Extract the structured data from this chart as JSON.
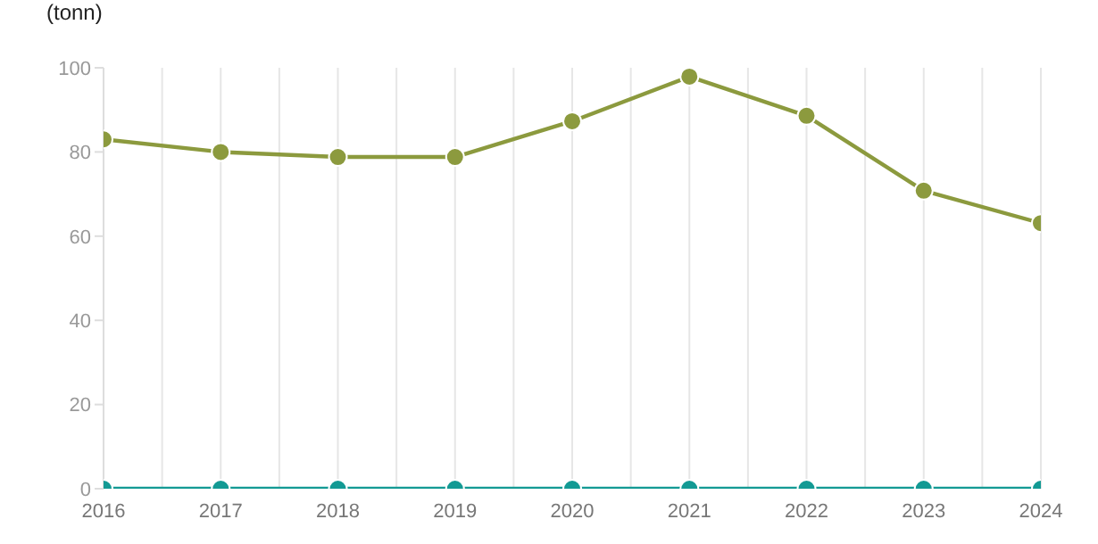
{
  "chart_data": {
    "type": "line",
    "ylabel": "(tonn)",
    "x": [
      2016,
      2017,
      2018,
      2019,
      2020,
      2021,
      2022,
      2023,
      2024
    ],
    "series": [
      {
        "color": "#8c9a3e",
        "values": [
          83,
          80,
          78.8,
          78.8,
          87.3,
          97.9,
          88.6,
          70.8,
          63.1
        ]
      },
      {
        "color": "#139a94",
        "values": [
          0,
          0,
          0,
          0,
          0,
          0,
          0,
          0,
          0
        ]
      }
    ],
    "xlim": [
      2016,
      2024
    ],
    "xticks": [
      2016,
      {
        "value": 2016.5,
        "label": null
      },
      2017,
      {
        "value": 2017.5,
        "label": null
      },
      2018,
      {
        "value": 2018.5,
        "label": null
      },
      2019,
      {
        "value": 2019.5,
        "label": null
      },
      2020,
      {
        "value": 2020.5,
        "label": null
      },
      2021,
      {
        "value": 2021.5,
        "label": null
      },
      2022,
      {
        "value": 2022.5,
        "label": null
      },
      2023,
      {
        "value": 2023.5,
        "label": null
      },
      2024
    ],
    "ylim": [
      0,
      100
    ],
    "yticks": [
      0,
      20,
      40,
      60,
      80,
      100
    ],
    "grid": "x",
    "marker": "circle",
    "line_style": "solid"
  }
}
